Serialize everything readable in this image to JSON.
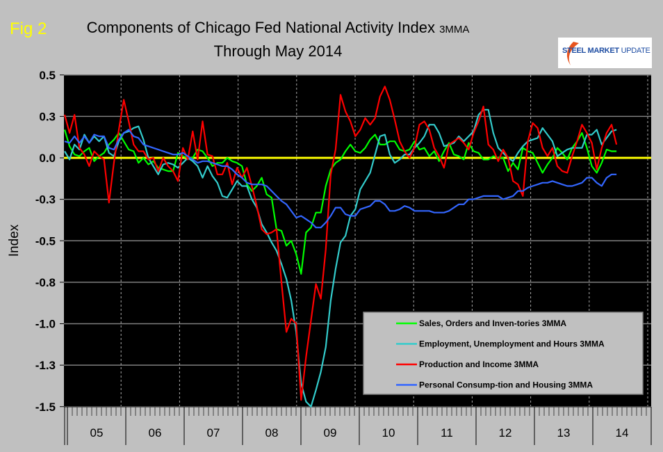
{
  "figure_label": "Fig 2",
  "logo": {
    "part1": "STEEL",
    "part2": "MARKET",
    "part3": "UPDATE"
  },
  "colors": {
    "background": "#c0c0c0",
    "plot": "#000000",
    "zero_line": "#ffff00",
    "green": "#00ff00",
    "cyan": "#33cccc",
    "red": "#ff0000",
    "blue": "#3366ff"
  },
  "chart_data": {
    "type": "line",
    "title": "Components of Chicago Fed National Activity Index",
    "title_suffix": "3MMA",
    "subtitle": "Through May 2014",
    "xlabel": "",
    "ylabel": "Index",
    "ylim": [
      -1.5,
      0.5
    ],
    "yticks": [
      0.5,
      0.25,
      0,
      -0.25,
      -0.5,
      -0.75,
      -1.0,
      -1.25,
      -1.5
    ],
    "ytick_labels": [
      "0.5",
      "0.3",
      "0.0",
      "-0.3",
      "-0.5",
      "-0.8",
      "-1.0",
      "-1.3",
      "-1.5"
    ],
    "x_start": "2005-01",
    "x_end": "2014-05",
    "x_frequency": "monthly",
    "xtick_labels": [
      "05",
      "06",
      "07",
      "08",
      "09",
      "10",
      "11",
      "12",
      "13",
      "14"
    ],
    "grid": "horizontal solid, vertical dashed",
    "legend_position": "bottom-right",
    "series": [
      {
        "name": "Sales, Orders and Inven-tories 3MMA",
        "color": "#00ff00",
        "values": [
          0.17,
          0.07,
          0.02,
          0.01,
          0.04,
          0.06,
          -0.02,
          0.01,
          0.03,
          0.08,
          0.11,
          0.15,
          0.1,
          0.05,
          0.04,
          -0.03,
          0.0,
          -0.04,
          -0.02,
          -0.06,
          -0.07,
          -0.08,
          -0.08,
          0.03,
          0.01,
          0,
          0,
          0.05,
          0.04,
          0,
          -0.05,
          -0.03,
          -0.03,
          0.0,
          -0.02,
          -0.03,
          -0.05,
          -0.16,
          -0.2,
          -0.17,
          -0.12,
          -0.22,
          -0.24,
          -0.43,
          -0.44,
          -0.53,
          -0.5,
          -0.58,
          -0.7,
          -0.45,
          -0.42,
          -0.33,
          -0.33,
          -0.17,
          -0.07,
          -0.03,
          -0.01,
          0.04,
          0.08,
          0.04,
          0.03,
          0.06,
          0.11,
          0.14,
          0.08,
          0.08,
          0.1,
          0.1,
          0.05,
          0.04,
          0.05,
          0.1,
          0.05,
          0.06,
          0.01,
          0.04,
          -0.02,
          0.04,
          0.09,
          0.02,
          0.01,
          -0.01,
          0.09,
          0.04,
          0.03,
          -0.01,
          -0.01,
          0.01,
          0.0,
          0.0,
          -0.08,
          -0.03,
          -0.07,
          0.06,
          0.04,
          0.03,
          -0.03,
          -0.09,
          -0.04,
          0.0,
          0.06,
          0.03,
          -0.01,
          0.06,
          0.1,
          0.15,
          0.06,
          -0.05,
          -0.09,
          -0.03,
          0.05,
          0.04,
          0.04
        ]
      },
      {
        "name": "Employment, Unemployment and Hours 3MMA",
        "color": "#33cccc",
        "values": [
          0.04,
          -0.01,
          0.08,
          0.05,
          0.14,
          0.09,
          0.13,
          0.1,
          0.13,
          0.03,
          0.01,
          0.1,
          0.15,
          0.16,
          0.18,
          0.19,
          0.11,
          0.0,
          -0.05,
          -0.1,
          -0.04,
          -0.03,
          -0.04,
          -0.06,
          -0.03,
          0,
          -0.02,
          -0.05,
          -0.12,
          -0.05,
          -0.11,
          -0.15,
          -0.23,
          -0.24,
          -0.19,
          -0.14,
          -0.17,
          -0.17,
          -0.25,
          -0.3,
          -0.4,
          -0.45,
          -0.51,
          -0.56,
          -0.64,
          -0.73,
          -0.86,
          -1.05,
          -1.36,
          -1.47,
          -1.5,
          -1.4,
          -1.29,
          -1.14,
          -0.86,
          -0.67,
          -0.51,
          -0.47,
          -0.35,
          -0.31,
          -0.19,
          -0.14,
          -0.09,
          0.02,
          0.13,
          0.14,
          0.02,
          -0.03,
          -0.01,
          0.02,
          0.02,
          0.06,
          0.09,
          0.13,
          0.2,
          0.2,
          0.15,
          0.07,
          0.08,
          0.09,
          0.13,
          0.1,
          0.13,
          0.16,
          0.26,
          0.29,
          0.29,
          0.15,
          0.06,
          0.03,
          0.0,
          -0.02,
          0.03,
          0.07,
          0.1,
          0.11,
          0.12,
          0.18,
          0.14,
          0.1,
          0.01,
          0.03,
          0.05,
          0.06,
          0.06,
          0.06,
          0.14,
          0.14,
          0.17,
          0.08,
          0.12,
          0.16,
          0.17
        ]
      },
      {
        "name": "Production and Income 3MMA",
        "color": "#ff0000",
        "values": [
          0.26,
          0.15,
          0.26,
          0.06,
          0.02,
          -0.05,
          0.04,
          0.01,
          -0.01,
          -0.27,
          -0.03,
          0.17,
          0.35,
          0.22,
          0.08,
          0.04,
          0.04,
          -0.01,
          0,
          -0.08,
          0,
          -0.05,
          -0.08,
          -0.14,
          0.06,
          -0.01,
          0.16,
          -0.01,
          0.22,
          0.02,
          0.01,
          -0.1,
          -0.1,
          -0.03,
          -0.16,
          -0.06,
          -0.12,
          -0.06,
          -0.17,
          -0.29,
          -0.43,
          -0.46,
          -0.45,
          -0.43,
          -0.75,
          -1.05,
          -0.97,
          -1.0,
          -1.46,
          -1.2,
          -0.98,
          -0.76,
          -0.85,
          -0.55,
          -0.1,
          0.05,
          0.38,
          0.28,
          0.22,
          0.13,
          0.17,
          0.24,
          0.2,
          0.24,
          0.37,
          0.43,
          0.35,
          0.23,
          0.1,
          0.04,
          0.0,
          0.06,
          0.2,
          0.22,
          0.17,
          0.06,
          0.01,
          -0.06,
          0.08,
          0.1,
          0.12,
          0.09,
          0.05,
          0.15,
          0.22,
          0.31,
          0.08,
          0.05,
          -0.02,
          0.05,
          0.0,
          -0.14,
          -0.16,
          -0.23,
          0.1,
          0.21,
          0.18,
          0.06,
          0.01,
          0.06,
          -0.05,
          -0.08,
          -0.09,
          0.01,
          0.1,
          0.2,
          0.15,
          0.09,
          -0.07,
          0.06,
          0.15,
          0.2,
          0.08
        ]
      },
      {
        "name": "Personal Consump-tion and Housing 3MMA",
        "color": "#3366ff",
        "values": [
          0.1,
          0.09,
          0.13,
          0.09,
          0.13,
          0.09,
          0.14,
          0.13,
          0.13,
          0.06,
          0.05,
          0.11,
          0.15,
          0.17,
          0.13,
          0.12,
          0.08,
          0.07,
          0.06,
          0.05,
          0.04,
          0.03,
          0.02,
          0.02,
          0.03,
          0.01,
          -0.01,
          -0.03,
          -0.02,
          -0.02,
          -0.03,
          -0.04,
          -0.05,
          -0.05,
          -0.07,
          -0.1,
          -0.12,
          -0.15,
          -0.16,
          -0.16,
          -0.16,
          -0.17,
          -0.2,
          -0.23,
          -0.26,
          -0.28,
          -0.32,
          -0.36,
          -0.35,
          -0.37,
          -0.39,
          -0.42,
          -0.42,
          -0.39,
          -0.35,
          -0.3,
          -0.3,
          -0.34,
          -0.35,
          -0.35,
          -0.31,
          -0.3,
          -0.29,
          -0.26,
          -0.26,
          -0.28,
          -0.32,
          -0.32,
          -0.31,
          -0.29,
          -0.3,
          -0.32,
          -0.32,
          -0.32,
          -0.32,
          -0.33,
          -0.33,
          -0.33,
          -0.32,
          -0.3,
          -0.28,
          -0.28,
          -0.25,
          -0.25,
          -0.24,
          -0.23,
          -0.23,
          -0.23,
          -0.23,
          -0.25,
          -0.24,
          -0.23,
          -0.2,
          -0.2,
          -0.18,
          -0.17,
          -0.16,
          -0.15,
          -0.15,
          -0.14,
          -0.15,
          -0.16,
          -0.17,
          -0.17,
          -0.16,
          -0.15,
          -0.12,
          -0.12,
          -0.15,
          -0.17,
          -0.12,
          -0.1,
          -0.1
        ]
      }
    ]
  }
}
